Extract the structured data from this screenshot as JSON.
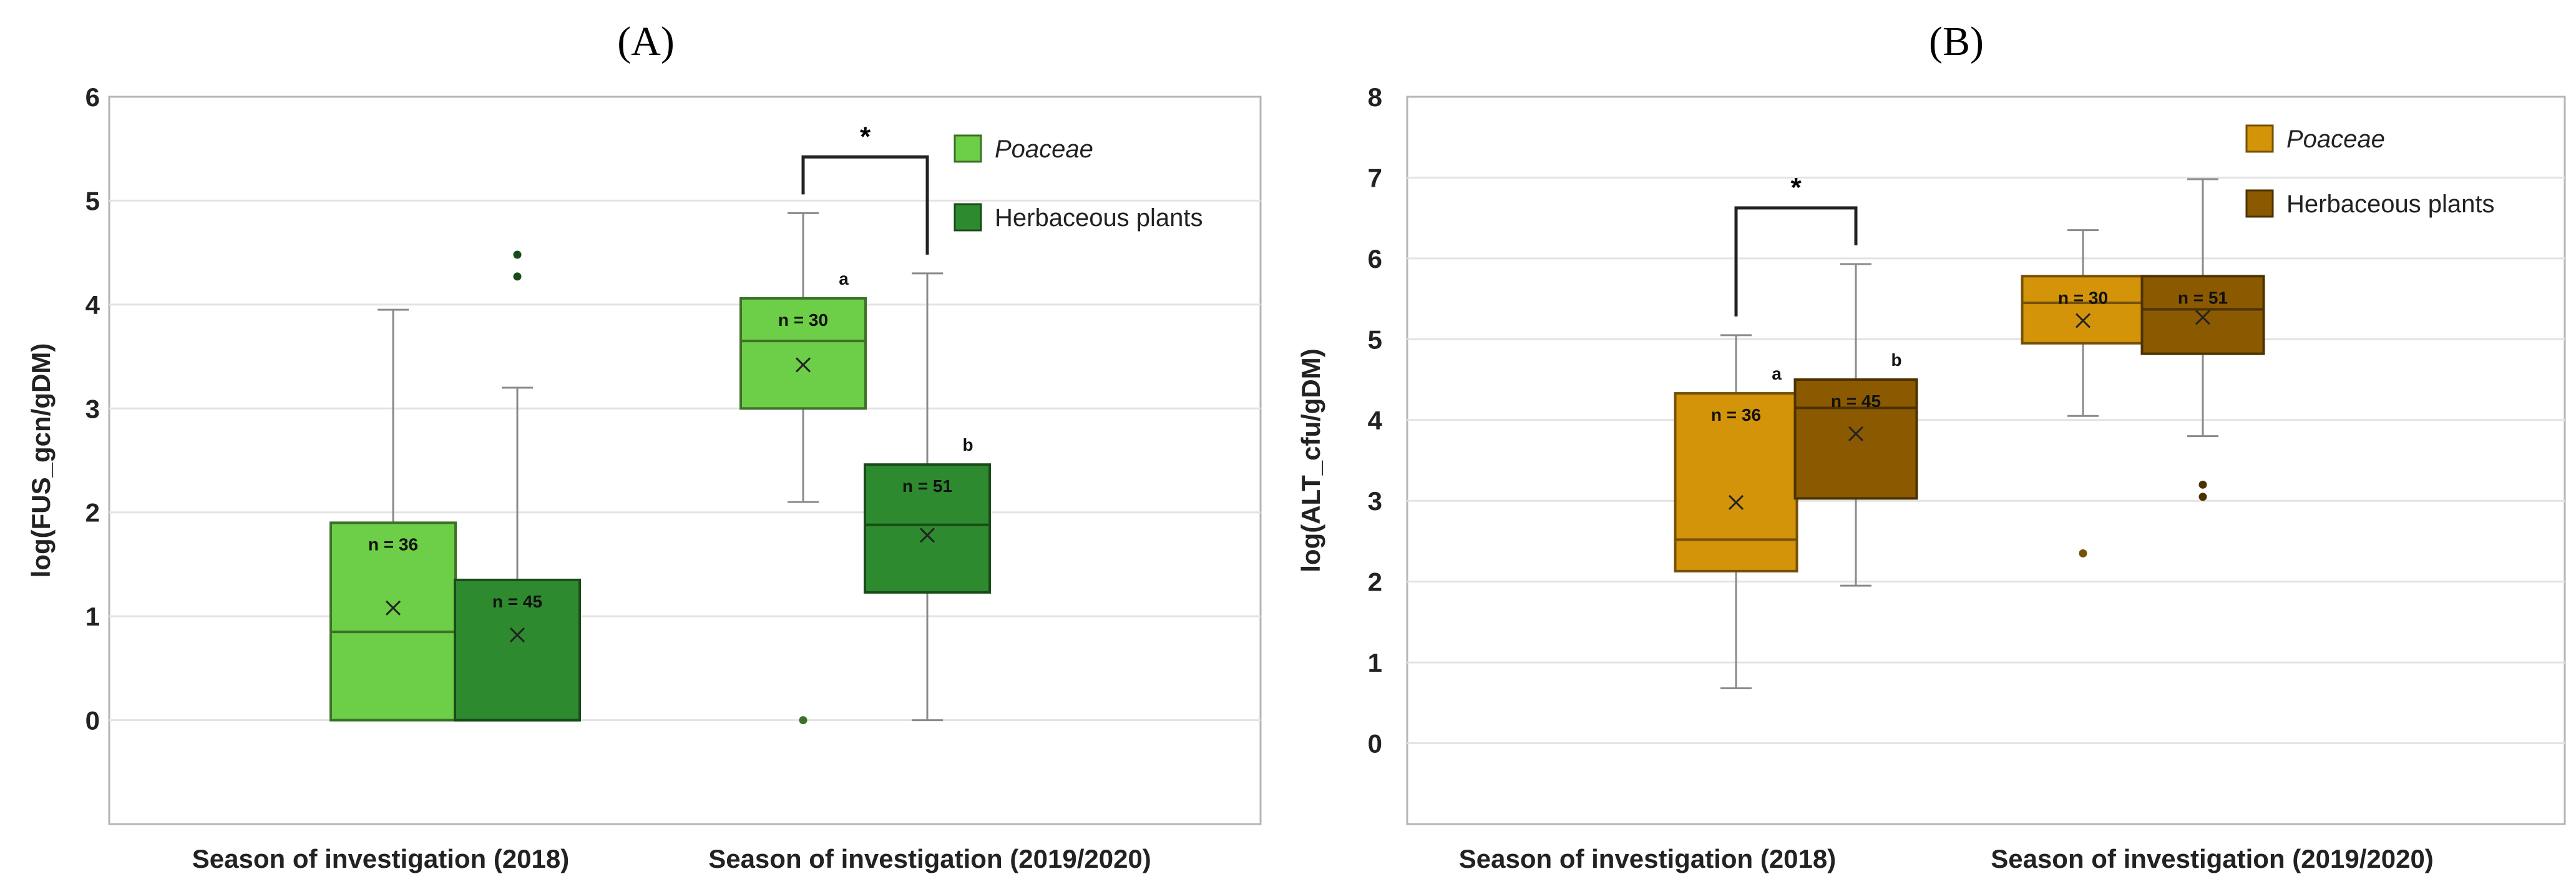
{
  "chart_data": [
    {
      "type": "box",
      "panel_label": "A",
      "panel_title": "(A)",
      "ylabel": "log(FUS_gcn/gDM)",
      "ylim": [
        -1,
        6
      ],
      "yticks": [
        0,
        1,
        2,
        3,
        4,
        5,
        6
      ],
      "categories": [
        "Season of investigation (2018)",
        "Season of investigation (2019/2020)"
      ],
      "legend": [
        {
          "label": "Poaceae",
          "italic": true,
          "color": "#6dce47"
        },
        {
          "label": "Herbaceous plants",
          "italic": false,
          "color": "#2e8a2e"
        }
      ],
      "boxes": [
        {
          "category": 0,
          "series": 0,
          "whisker_low": 0,
          "q1": 0,
          "median": 0.85,
          "q3": 1.9,
          "whisker_high": 3.95,
          "mean": 1.08,
          "n_label": "n = 36",
          "outliers": [],
          "letter": ""
        },
        {
          "category": 0,
          "series": 1,
          "whisker_low": 0,
          "q1": 0,
          "median": 0,
          "q3": 1.35,
          "whisker_high": 3.2,
          "mean": 0.82,
          "n_label": "n = 45",
          "outliers": [
            4.27,
            4.48
          ],
          "letter": ""
        },
        {
          "category": 1,
          "series": 0,
          "whisker_low": 2.1,
          "q1": 3.0,
          "median": 3.65,
          "q3": 4.06,
          "whisker_high": 4.88,
          "mean": 3.42,
          "n_label": "n = 30",
          "outliers": [
            0
          ],
          "letter": "a"
        },
        {
          "category": 1,
          "series": 1,
          "whisker_low": 0,
          "q1": 1.23,
          "median": 1.88,
          "q3": 2.46,
          "whisker_high": 4.3,
          "mean": 1.78,
          "n_label": "n = 51",
          "outliers": [],
          "letter": "b"
        }
      ],
      "significance": {
        "category": 1,
        "label": "*"
      }
    },
    {
      "type": "box",
      "panel_label": "B",
      "panel_title": "(B)",
      "ylabel": "log(ALT_cfu/gDM)",
      "ylim": [
        -1,
        8
      ],
      "yticks": [
        0,
        1,
        2,
        3,
        4,
        5,
        6,
        7,
        8
      ],
      "categories": [
        "Season of investigation (2018)",
        "Season of investigation (2019/2020)"
      ],
      "legend": [
        {
          "label": "Poaceae",
          "italic": true,
          "color": "#d4940a"
        },
        {
          "label": "Herbaceous plants",
          "italic": false,
          "color": "#8b5a00"
        }
      ],
      "boxes": [
        {
          "category": 0,
          "series": 0,
          "whisker_low": 0.68,
          "q1": 2.13,
          "median": 2.52,
          "q3": 4.33,
          "whisker_high": 5.05,
          "mean": 2.98,
          "n_label": "n = 36",
          "outliers": [],
          "letter": "a"
        },
        {
          "category": 0,
          "series": 1,
          "whisker_low": 1.95,
          "q1": 3.03,
          "median": 4.15,
          "q3": 4.5,
          "whisker_high": 5.93,
          "mean": 3.83,
          "n_label": "n = 45",
          "outliers": [],
          "letter": "b"
        },
        {
          "category": 1,
          "series": 0,
          "whisker_low": 4.05,
          "q1": 4.95,
          "median": 5.45,
          "q3": 5.78,
          "whisker_high": 6.35,
          "mean": 5.23,
          "n_label": "n = 30",
          "outliers": [
            2.35
          ],
          "letter": ""
        },
        {
          "category": 1,
          "series": 1,
          "whisker_low": 3.8,
          "q1": 4.82,
          "median": 5.37,
          "q3": 5.78,
          "whisker_high": 6.98,
          "mean": 5.27,
          "n_label": "n = 51",
          "outliers": [
            3.05,
            3.2
          ],
          "letter": ""
        }
      ],
      "significance": {
        "category": 0,
        "label": "*"
      }
    }
  ]
}
